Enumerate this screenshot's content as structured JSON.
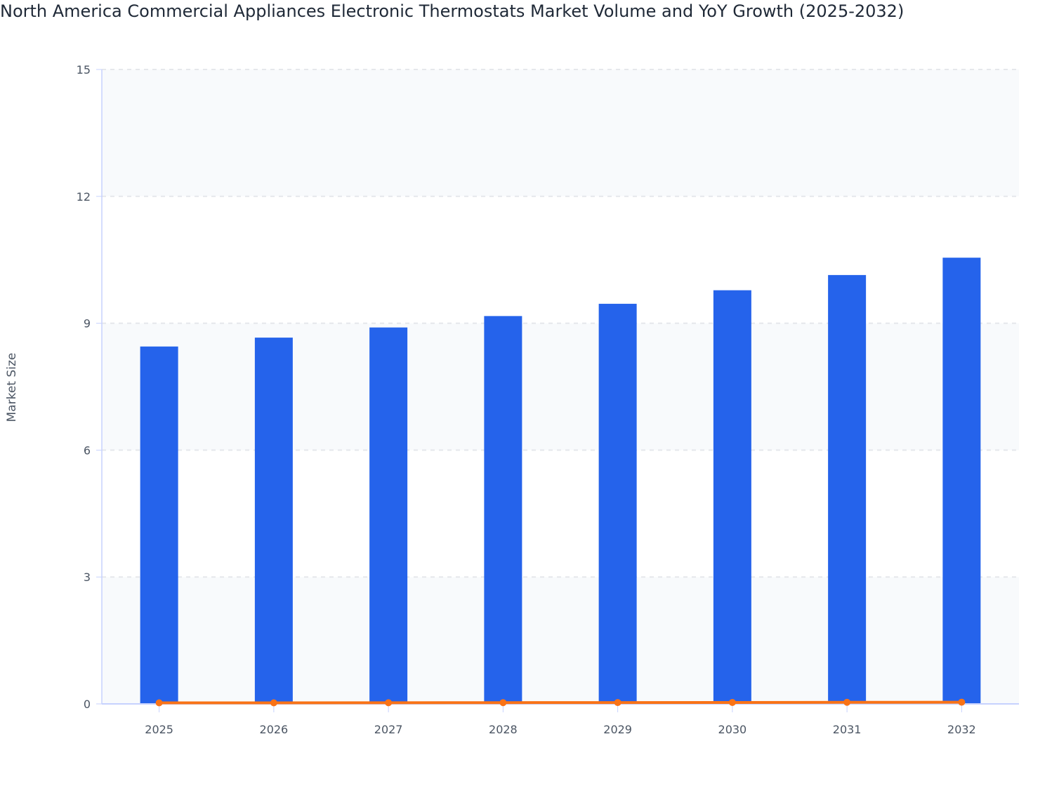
{
  "chart_data": {
    "type": "bar",
    "title": "North America Commercial Appliances Electronic Thermostats Market Volume and YoY Growth (2025-2032)",
    "xlabel": "",
    "ylabel": "Market Size",
    "ylim": [
      0,
      15
    ],
    "yticks": [
      0,
      3,
      6,
      9,
      12,
      15
    ],
    "grid": true,
    "categories": [
      "2025",
      "2026",
      "2027",
      "2028",
      "2029",
      "2030",
      "2031",
      "2032"
    ],
    "series": [
      {
        "type": "bar",
        "color": "#2563eb",
        "values": [
          8.45,
          8.66,
          8.9,
          9.17,
          9.46,
          9.78,
          10.14,
          10.55
        ]
      },
      {
        "type": "line",
        "color": "#f97316",
        "values": [
          0.025,
          0.025,
          0.028,
          0.03,
          0.032,
          0.034,
          0.037,
          0.04
        ]
      }
    ]
  }
}
